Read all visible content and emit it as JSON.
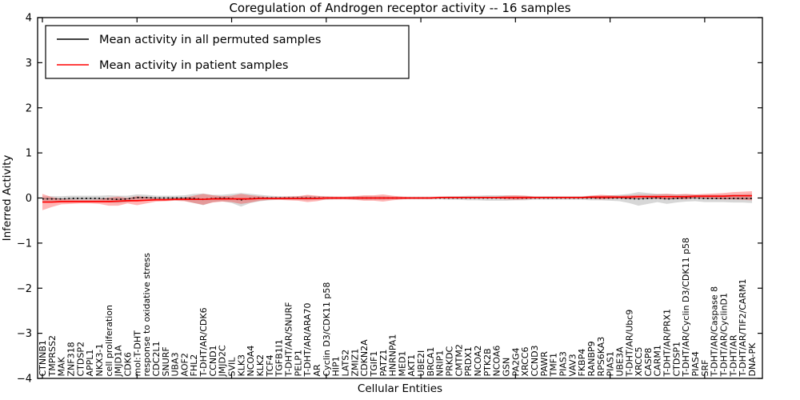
{
  "chart_data": {
    "type": "line",
    "title": "Coregulation of Androgen receptor activity -- 16 samples",
    "xlabel": "Cellular Entities",
    "ylabel": "Inferred Activity",
    "ylim": [
      -4,
      4
    ],
    "yticks": [
      4,
      3,
      2,
      1,
      0,
      -1,
      -2,
      -3,
      -4
    ],
    "grid": false,
    "x_tick_every": 10,
    "legend": {
      "position": "upper left",
      "entries": [
        {
          "label": "Mean activity in all permuted samples",
          "color": "#000000"
        },
        {
          "label": "Mean activity in patient samples",
          "color": "#ff0000"
        }
      ]
    },
    "categories": [
      "CTNNB1",
      "TMPRSS2",
      "MAK",
      "ZNF318",
      "CTDSP2",
      "APPL1",
      "NKX3-1",
      "cell proliferation",
      "JMJD1A",
      "CDK6",
      "mol:T-DHT",
      "response to oxidative stress",
      "CDC2L1",
      "SNURF",
      "UBA3",
      "AOF2",
      "FHL2",
      "T-DHT/AR/CDK6",
      "CCND1",
      "JMJD2C",
      "SVIL",
      "KLK3",
      "NCOA4",
      "KLK2",
      "TCF4",
      "TGFB1I1",
      "T-DHT/AR/SNURF",
      "PELP1",
      "T-DHT/AR/ARA70",
      "AR",
      "Cyclin D3/CDK11 p58",
      "HIP1",
      "LATS2",
      "ZMIZ1",
      "CDKN2A",
      "TGIF1",
      "PATZ1",
      "HNRNPA1",
      "MED1",
      "AKT1",
      "UBE2I",
      "BRCA1",
      "NRIP1",
      "PRKDC",
      "CMTM2",
      "PRDX1",
      "NCOA2",
      "PTK2B",
      "NCOA6",
      "GSN",
      "PA2G4",
      "XRCC6",
      "CCND3",
      "PAWR",
      "TMF1",
      "PIAS3",
      "VAV3",
      "FKBP4",
      "RANBP9",
      "RPS6KA3",
      "PIAS1",
      "UBE3A",
      "T-DHT/AR/Ubc9",
      "XRCC5",
      "CASP8",
      "CARM1",
      "T-DHT/AR/PRX1",
      "CTDSP1",
      "T-DHT/AR/Cyclin D3/CDK11 p58",
      "PIAS4",
      "SRF",
      "T-DHT/AR/Caspase 8",
      "T-DHT/AR/CyclinD1",
      "T-DHT/AR",
      "T-DHT/AR/TIF2/CARM1",
      "DNA-PK"
    ],
    "series": [
      {
        "name": "Mean activity in all permuted samples",
        "color": "#000000",
        "line_style": "dotted",
        "band_color": "rgba(110,110,110,0.28)",
        "values": [
          -0.02,
          -0.02,
          -0.02,
          -0.01,
          -0.01,
          -0.01,
          -0.01,
          -0.02,
          -0.03,
          -0.02,
          0.01,
          0.01,
          0.0,
          0.0,
          0.0,
          0.0,
          -0.01,
          -0.03,
          -0.01,
          0.0,
          -0.01,
          -0.04,
          -0.01,
          0.0,
          0.0,
          0.0,
          0.0,
          0.0,
          0.0,
          0.0,
          0.0,
          0.0,
          0.0,
          0.0,
          0.0,
          0.0,
          0.0,
          0.0,
          0.0,
          0.0,
          0.0,
          0.0,
          0.0,
          0.0,
          0.0,
          0.0,
          0.0,
          0.0,
          0.0,
          0.0,
          0.0,
          0.0,
          0.0,
          0.0,
          0.0,
          0.0,
          0.0,
          0.0,
          0.0,
          0.0,
          0.0,
          0.0,
          -0.01,
          -0.02,
          -0.01,
          0.0,
          -0.02,
          -0.01,
          0.0,
          0.0,
          -0.01,
          -0.01,
          -0.01,
          -0.01,
          -0.01,
          -0.01
        ],
        "band": [
          0.05,
          0.06,
          0.06,
          0.06,
          0.06,
          0.06,
          0.06,
          0.08,
          0.08,
          0.07,
          0.07,
          0.06,
          0.05,
          0.05,
          0.05,
          0.06,
          0.1,
          0.13,
          0.08,
          0.07,
          0.1,
          0.15,
          0.1,
          0.07,
          0.05,
          0.04,
          0.04,
          0.04,
          0.05,
          0.04,
          0.04,
          0.03,
          0.03,
          0.04,
          0.04,
          0.04,
          0.04,
          0.03,
          0.03,
          0.03,
          0.03,
          0.03,
          0.03,
          0.04,
          0.04,
          0.05,
          0.05,
          0.06,
          0.06,
          0.06,
          0.05,
          0.05,
          0.04,
          0.04,
          0.04,
          0.04,
          0.04,
          0.04,
          0.05,
          0.05,
          0.06,
          0.07,
          0.1,
          0.15,
          0.12,
          0.09,
          0.11,
          0.09,
          0.08,
          0.07,
          0.08,
          0.08,
          0.08,
          0.09,
          0.09,
          0.1
        ]
      },
      {
        "name": "Mean activity in patient samples",
        "color": "#ff0000",
        "line_style": "solid",
        "band_color": "rgba(255,30,30,0.33)",
        "values": [
          -0.09,
          -0.09,
          -0.08,
          -0.08,
          -0.08,
          -0.08,
          -0.08,
          -0.08,
          -0.07,
          -0.06,
          -0.06,
          -0.05,
          -0.04,
          -0.04,
          -0.03,
          -0.03,
          -0.03,
          -0.03,
          -0.02,
          -0.02,
          -0.02,
          -0.02,
          -0.02,
          -0.01,
          -0.01,
          -0.01,
          -0.01,
          -0.01,
          -0.01,
          -0.01,
          0.0,
          0.0,
          0.0,
          0.0,
          0.0,
          0.0,
          0.0,
          0.0,
          0.0,
          0.0,
          0.0,
          0.0,
          0.01,
          0.01,
          0.01,
          0.01,
          0.01,
          0.01,
          0.01,
          0.01,
          0.01,
          0.01,
          0.01,
          0.01,
          0.01,
          0.01,
          0.01,
          0.01,
          0.02,
          0.02,
          0.02,
          0.02,
          0.02,
          0.03,
          0.03,
          0.03,
          0.03,
          0.03,
          0.03,
          0.04,
          0.04,
          0.04,
          0.04,
          0.05,
          0.05,
          0.05
        ],
        "band": [
          0.18,
          0.11,
          0.06,
          0.05,
          0.04,
          0.04,
          0.05,
          0.09,
          0.1,
          0.06,
          0.1,
          0.07,
          0.04,
          0.03,
          0.03,
          0.04,
          0.08,
          0.12,
          0.08,
          0.06,
          0.07,
          0.11,
          0.08,
          0.05,
          0.03,
          0.03,
          0.04,
          0.05,
          0.08,
          0.06,
          0.03,
          0.03,
          0.03,
          0.04,
          0.06,
          0.06,
          0.08,
          0.05,
          0.03,
          0.02,
          0.02,
          0.02,
          0.02,
          0.02,
          0.02,
          0.02,
          0.02,
          0.02,
          0.02,
          0.04,
          0.05,
          0.04,
          0.02,
          0.02,
          0.02,
          0.02,
          0.02,
          0.02,
          0.03,
          0.05,
          0.04,
          0.03,
          0.04,
          0.04,
          0.04,
          0.05,
          0.06,
          0.05,
          0.06,
          0.04,
          0.05,
          0.06,
          0.07,
          0.08,
          0.09,
          0.1
        ]
      }
    ]
  }
}
